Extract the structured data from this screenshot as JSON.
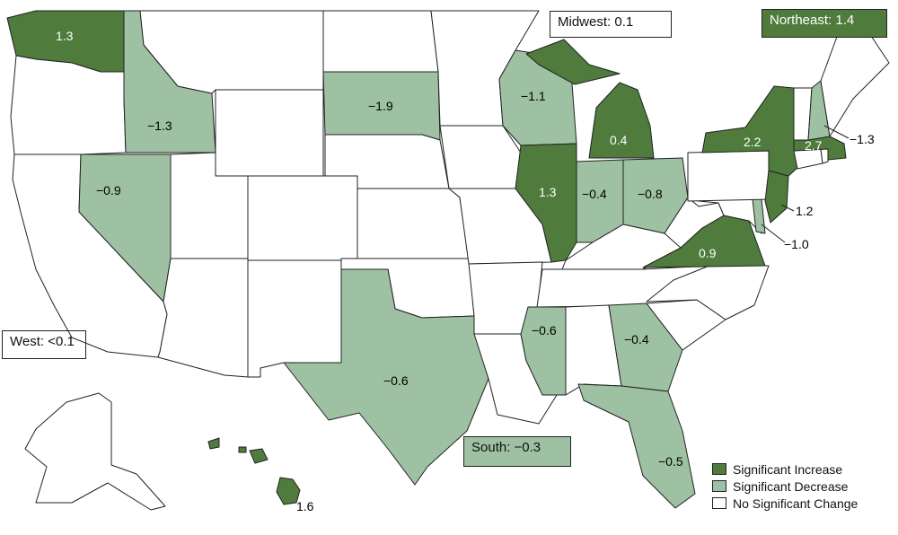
{
  "colors": {
    "increase": "#4f7b3c",
    "decrease": "#9dc1a2",
    "no_change": "#ffffff",
    "border": "#222222"
  },
  "regions": {
    "midwest": "Midwest: 0.1",
    "northeast": "Northeast: 1.4",
    "west": "West: <0.1",
    "south": "South: −0.3"
  },
  "legend": [
    {
      "label": "Significant Increase",
      "status": "increase"
    },
    {
      "label": "Significant Decrease",
      "status": "decrease"
    },
    {
      "label": "No Significant Change",
      "status": "no_change"
    }
  ],
  "states": [
    {
      "id": "WA",
      "status": "increase",
      "value": "1.3"
    },
    {
      "id": "OR",
      "status": "no_change",
      "value": ""
    },
    {
      "id": "CA",
      "status": "no_change",
      "value": ""
    },
    {
      "id": "ID",
      "status": "decrease",
      "value": "−1.3"
    },
    {
      "id": "NV",
      "status": "decrease",
      "value": "−0.9"
    },
    {
      "id": "MT",
      "status": "no_change",
      "value": ""
    },
    {
      "id": "WY",
      "status": "no_change",
      "value": ""
    },
    {
      "id": "UT",
      "status": "no_change",
      "value": ""
    },
    {
      "id": "AZ",
      "status": "no_change",
      "value": ""
    },
    {
      "id": "CO",
      "status": "no_change",
      "value": ""
    },
    {
      "id": "NM",
      "status": "no_change",
      "value": ""
    },
    {
      "id": "ND",
      "status": "no_change",
      "value": ""
    },
    {
      "id": "SD",
      "status": "decrease",
      "value": "−1.9"
    },
    {
      "id": "NE",
      "status": "no_change",
      "value": ""
    },
    {
      "id": "KS",
      "status": "no_change",
      "value": ""
    },
    {
      "id": "OK",
      "status": "no_change",
      "value": ""
    },
    {
      "id": "TX",
      "status": "decrease",
      "value": "−0.6"
    },
    {
      "id": "MN",
      "status": "no_change",
      "value": ""
    },
    {
      "id": "IA",
      "status": "no_change",
      "value": ""
    },
    {
      "id": "MO",
      "status": "no_change",
      "value": ""
    },
    {
      "id": "AR",
      "status": "no_change",
      "value": ""
    },
    {
      "id": "LA",
      "status": "no_change",
      "value": ""
    },
    {
      "id": "WI",
      "status": "decrease",
      "value": "−1.1"
    },
    {
      "id": "IL",
      "status": "increase",
      "value": "1.3"
    },
    {
      "id": "MI",
      "status": "increase",
      "value": "0.4"
    },
    {
      "id": "IN",
      "status": "decrease",
      "value": "−0.4"
    },
    {
      "id": "OH",
      "status": "decrease",
      "value": "−0.8"
    },
    {
      "id": "KY",
      "status": "no_change",
      "value": ""
    },
    {
      "id": "TN",
      "status": "no_change",
      "value": ""
    },
    {
      "id": "MS",
      "status": "decrease",
      "value": "−0.6"
    },
    {
      "id": "AL",
      "status": "no_change",
      "value": ""
    },
    {
      "id": "GA",
      "status": "decrease",
      "value": "−0.4"
    },
    {
      "id": "FL",
      "status": "decrease",
      "value": "−0.5"
    },
    {
      "id": "SC",
      "status": "no_change",
      "value": ""
    },
    {
      "id": "NC",
      "status": "no_change",
      "value": ""
    },
    {
      "id": "VA",
      "status": "increase",
      "value": "0.9"
    },
    {
      "id": "WV",
      "status": "no_change",
      "value": ""
    },
    {
      "id": "PA",
      "status": "no_change",
      "value": ""
    },
    {
      "id": "NY",
      "status": "increase",
      "value": "2.2"
    },
    {
      "id": "NJ",
      "status": "increase",
      "value": "1.2"
    },
    {
      "id": "DE",
      "status": "decrease",
      "value": "−1.0"
    },
    {
      "id": "MD",
      "status": "no_change",
      "value": ""
    },
    {
      "id": "CT",
      "status": "no_change",
      "value": ""
    },
    {
      "id": "RI",
      "status": "no_change",
      "value": ""
    },
    {
      "id": "MA",
      "status": "increase",
      "value": "2.7"
    },
    {
      "id": "VT",
      "status": "no_change",
      "value": ""
    },
    {
      "id": "NH",
      "status": "decrease",
      "value": "−1.3"
    },
    {
      "id": "ME",
      "status": "no_change",
      "value": ""
    },
    {
      "id": "AK",
      "status": "no_change",
      "value": ""
    },
    {
      "id": "HI",
      "status": "increase",
      "value": "1.6"
    }
  ]
}
